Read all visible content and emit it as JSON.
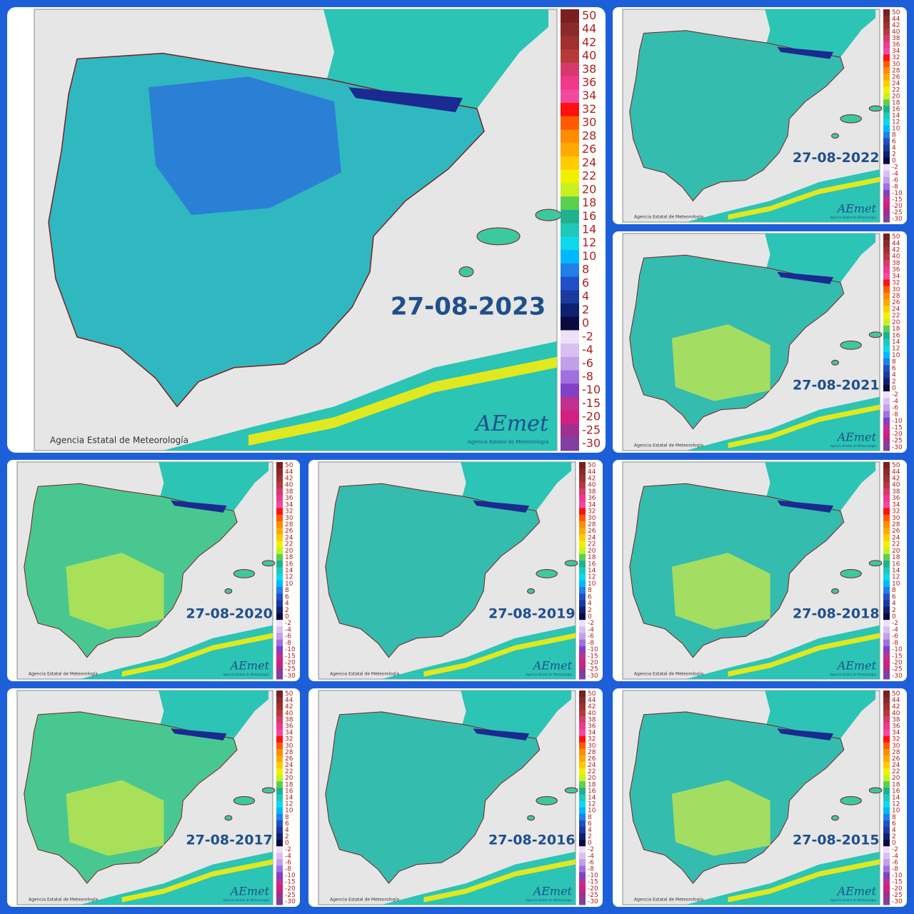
{
  "panels": [
    {
      "date": "27-08-2023"
    },
    {
      "date": "27-08-2022"
    },
    {
      "date": "27-08-2021"
    },
    {
      "date": "27-08-2020"
    },
    {
      "date": "27-08-2019"
    },
    {
      "date": "27-08-2018"
    },
    {
      "date": "27-08-2017"
    },
    {
      "date": "27-08-2016"
    },
    {
      "date": "27-08-2015"
    }
  ],
  "copyright": "Agencia Estatal de Meteorología",
  "logo": "AEmet",
  "logo_subtitle": "Agencia Estatal de Meteorología",
  "legend": {
    "ticks": [
      "50",
      "44",
      "42",
      "40",
      "38",
      "36",
      "34",
      "32",
      "30",
      "28",
      "26",
      "24",
      "22",
      "20",
      "18",
      "16",
      "14",
      "12",
      "10",
      "8",
      "6",
      "4",
      "2",
      "0",
      "-2",
      "-4",
      "-6",
      "-8",
      "-10",
      "-15",
      "-20",
      "-25",
      "-30"
    ]
  }
}
